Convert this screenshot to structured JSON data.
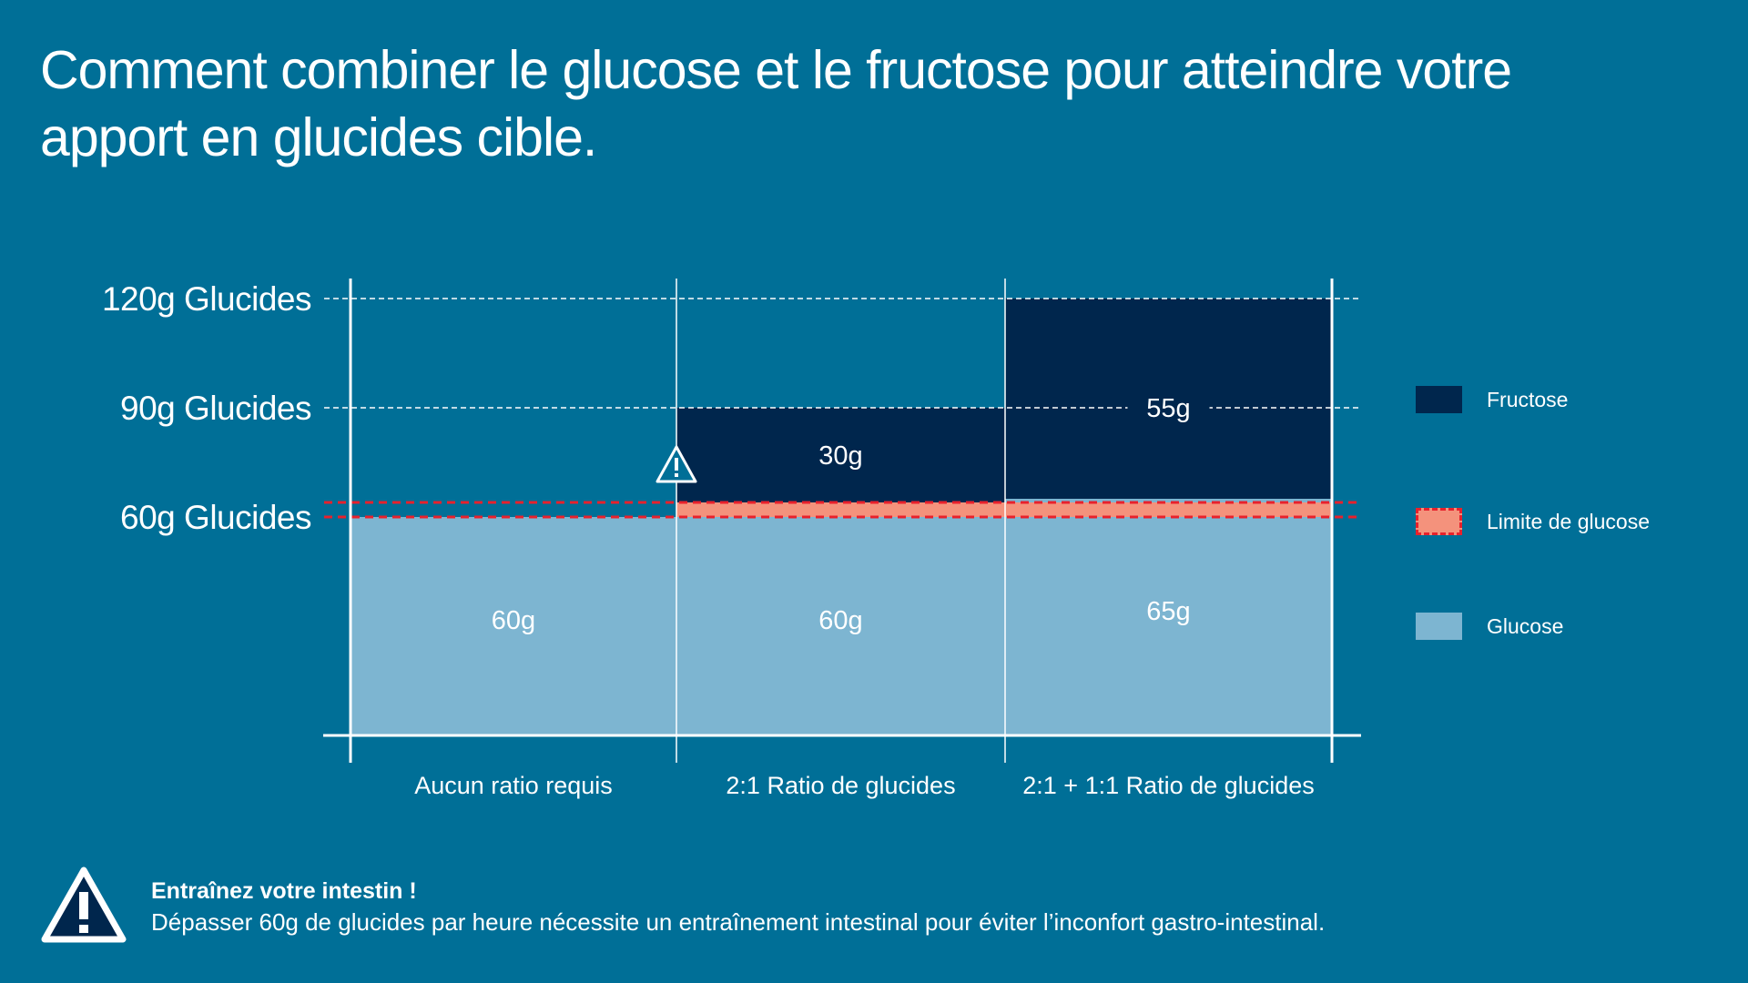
{
  "title": "Comment combiner le glucose et le fructose pour atteindre votre apport en glucides cible.",
  "colors": {
    "background": "#006F97",
    "fructose": "#00264D",
    "glucose": "#7DB5D1",
    "glucose_limit_fill": "#F4927C",
    "glucose_limit_line": "#E8212C",
    "white": "#FFFFFF"
  },
  "chart_data": {
    "type": "bar",
    "stacked": true,
    "categories": [
      "Aucun ratio requis",
      "2:1 Ratio de glucides",
      "2:1 + 1:1 Ratio de glucides"
    ],
    "series": [
      {
        "name": "Glucose",
        "values": [
          60,
          60,
          65
        ],
        "labels": [
          "60g",
          "60g",
          "65g"
        ]
      },
      {
        "name": "Fructose",
        "values": [
          0,
          30,
          55
        ],
        "labels": [
          "",
          "30g",
          "55g"
        ]
      }
    ],
    "y_ticks": [
      {
        "value": 60,
        "label": "60g Glucides"
      },
      {
        "value": 90,
        "label": "90g Glucides"
      },
      {
        "value": 120,
        "label": "120g Glucides"
      }
    ],
    "glucose_limit": {
      "name": "Limite de glucose",
      "from": 60,
      "to": 64
    },
    "ylim": [
      0,
      120
    ],
    "warning_marker_category": 1,
    "legend_position": "right"
  },
  "legend": {
    "items": [
      {
        "name": "Fructose",
        "icon": "fructose-swatch"
      },
      {
        "name": "Limite de glucose",
        "icon": "glucose-limit-swatch"
      },
      {
        "name": "Glucose",
        "icon": "glucose-swatch"
      }
    ]
  },
  "note": {
    "title": "Entraînez votre intestin !",
    "text": "Dépasser 60g de glucides par heure nécessite un entraînement intestinal pour éviter l’inconfort gastro-intestinal.",
    "icon": "warning-icon"
  }
}
